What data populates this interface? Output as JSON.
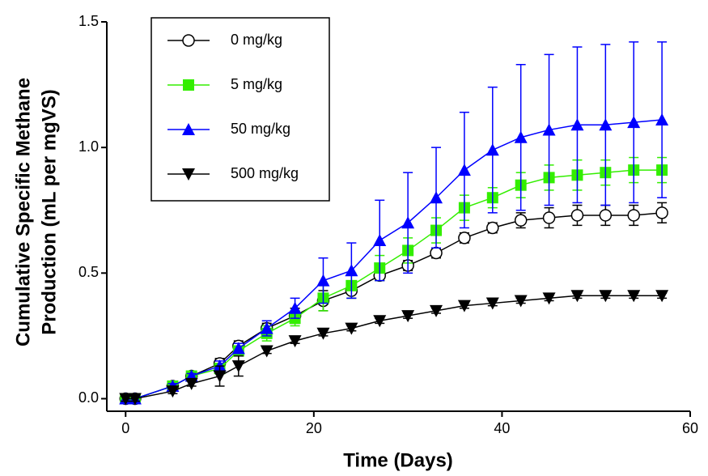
{
  "chart_data": {
    "type": "line",
    "xlabel": "Time (Days)",
    "ylabel": [
      "Cumulative Specific Methane",
      "Production (mL per mgVS)"
    ],
    "x": [
      0,
      1,
      5,
      7,
      10,
      12,
      15,
      18,
      21,
      24,
      27,
      30,
      33,
      36,
      39,
      42,
      45,
      48,
      51,
      54,
      57
    ],
    "series": [
      {
        "name": "0 mg/kg",
        "color": "#000000",
        "marker": "circle",
        "values": [
          0,
          0,
          0.05,
          0.09,
          0.14,
          0.21,
          0.28,
          0.33,
          0.39,
          0.43,
          0.49,
          0.53,
          0.58,
          0.64,
          0.68,
          0.71,
          0.72,
          0.73,
          0.73,
          0.73,
          0.74
        ],
        "errors": [
          0.01,
          0.01,
          0.01,
          0.01,
          0.02,
          0.02,
          0.02,
          0.03,
          0.04,
          0.03,
          0.02,
          0.02,
          0.02,
          0.02,
          0.02,
          0.03,
          0.04,
          0.04,
          0.04,
          0.04,
          0.04
        ]
      },
      {
        "name": "5 mg/kg",
        "color": "#33ee00",
        "marker": "square",
        "values": [
          0,
          0,
          0.05,
          0.09,
          0.12,
          0.19,
          0.26,
          0.32,
          0.4,
          0.45,
          0.52,
          0.59,
          0.67,
          0.76,
          0.8,
          0.85,
          0.88,
          0.89,
          0.9,
          0.91,
          0.91
        ],
        "errors": [
          0.01,
          0.01,
          0.01,
          0.01,
          0.02,
          0.02,
          0.03,
          0.03,
          0.05,
          0.05,
          0.05,
          0.05,
          0.05,
          0.05,
          0.04,
          0.05,
          0.05,
          0.06,
          0.05,
          0.05,
          0.05
        ]
      },
      {
        "name": "50 mg/kg",
        "color": "#0000ff",
        "marker": "triangle-up",
        "values": [
          0,
          0,
          0.05,
          0.09,
          0.13,
          0.2,
          0.28,
          0.36,
          0.47,
          0.51,
          0.63,
          0.7,
          0.8,
          0.91,
          0.99,
          1.04,
          1.07,
          1.09,
          1.09,
          1.1,
          1.11
        ],
        "errors": [
          0.01,
          0.01,
          0.01,
          0.01,
          0.02,
          0.02,
          0.03,
          0.04,
          0.09,
          0.11,
          0.16,
          0.2,
          0.2,
          0.23,
          0.25,
          0.29,
          0.3,
          0.31,
          0.32,
          0.32,
          0.31
        ]
      },
      {
        "name": "500 mg/kg",
        "color": "#000000",
        "marker": "triangle-down",
        "values": [
          0,
          0,
          0.03,
          0.06,
          0.09,
          0.13,
          0.19,
          0.23,
          0.26,
          0.28,
          0.31,
          0.33,
          0.35,
          0.37,
          0.38,
          0.39,
          0.4,
          0.41,
          0.41,
          0.41,
          0.41
        ],
        "errors": [
          0.01,
          0.01,
          0.01,
          0.01,
          0.04,
          0.04,
          0.01,
          0.01,
          0.01,
          0.01,
          0.01,
          0.01,
          0.01,
          0.01,
          0.01,
          0.01,
          0.01,
          0.01,
          0.01,
          0.01,
          0.01
        ]
      }
    ],
    "xlim": [
      -2,
      60
    ],
    "xticks": [
      0,
      20,
      40,
      60
    ],
    "ylim": [
      -0.05,
      1.5
    ],
    "yticks": [
      {
        "value": 0,
        "label": "0.0"
      },
      {
        "value": 0.5,
        "label": "0.5"
      },
      {
        "value": 1,
        "label": "1.0"
      },
      {
        "value": 1.5,
        "label": "1.5"
      }
    ],
    "legend": "upper-left"
  }
}
